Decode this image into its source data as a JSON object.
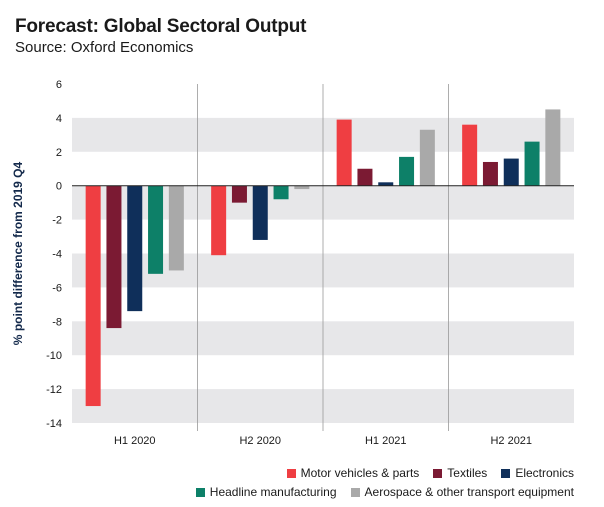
{
  "chart_data": {
    "type": "bar",
    "title": "Forecast: Global Sectoral Output",
    "subtitle": "Source: Oxford Economics",
    "ylabel": "% point difference from 2019 Q4",
    "xlabel": "",
    "ylim": [
      -14,
      6
    ],
    "yticks": [
      "6",
      "4",
      "2",
      "0",
      "-2",
      "-4",
      "-6",
      "-8",
      "-10",
      "-12",
      "-14"
    ],
    "ytick_values": [
      6,
      4,
      2,
      0,
      -2,
      -4,
      -6,
      -8,
      -10,
      -12,
      -14
    ],
    "categories": [
      "H1 2020",
      "H2 2020",
      "H1 2021",
      "H2 2021"
    ],
    "series": [
      {
        "name": "Motor vehicles & parts",
        "color": "#ef3e42",
        "values": [
          -13.0,
          -4.1,
          3.9,
          3.6
        ]
      },
      {
        "name": "Textiles",
        "color": "#7b1a33",
        "values": [
          -8.4,
          -1.0,
          1.0,
          1.4
        ]
      },
      {
        "name": "Electronics",
        "color": "#0f2f5a",
        "values": [
          -7.4,
          -3.2,
          0.2,
          1.6
        ]
      },
      {
        "name": "Headline manufacturing",
        "color": "#0d8068",
        "values": [
          -5.2,
          -0.8,
          1.7,
          2.6
        ]
      },
      {
        "name": "Aerospace & other transport equipment",
        "color": "#a9a9a9",
        "values": [
          -5.0,
          -0.2,
          3.3,
          4.5
        ]
      }
    ],
    "grid": "alternating horizontal bands",
    "legend_position": "bottom-right"
  },
  "legend": {
    "row1": [
      0,
      1,
      2
    ],
    "row2": [
      3,
      4
    ]
  }
}
